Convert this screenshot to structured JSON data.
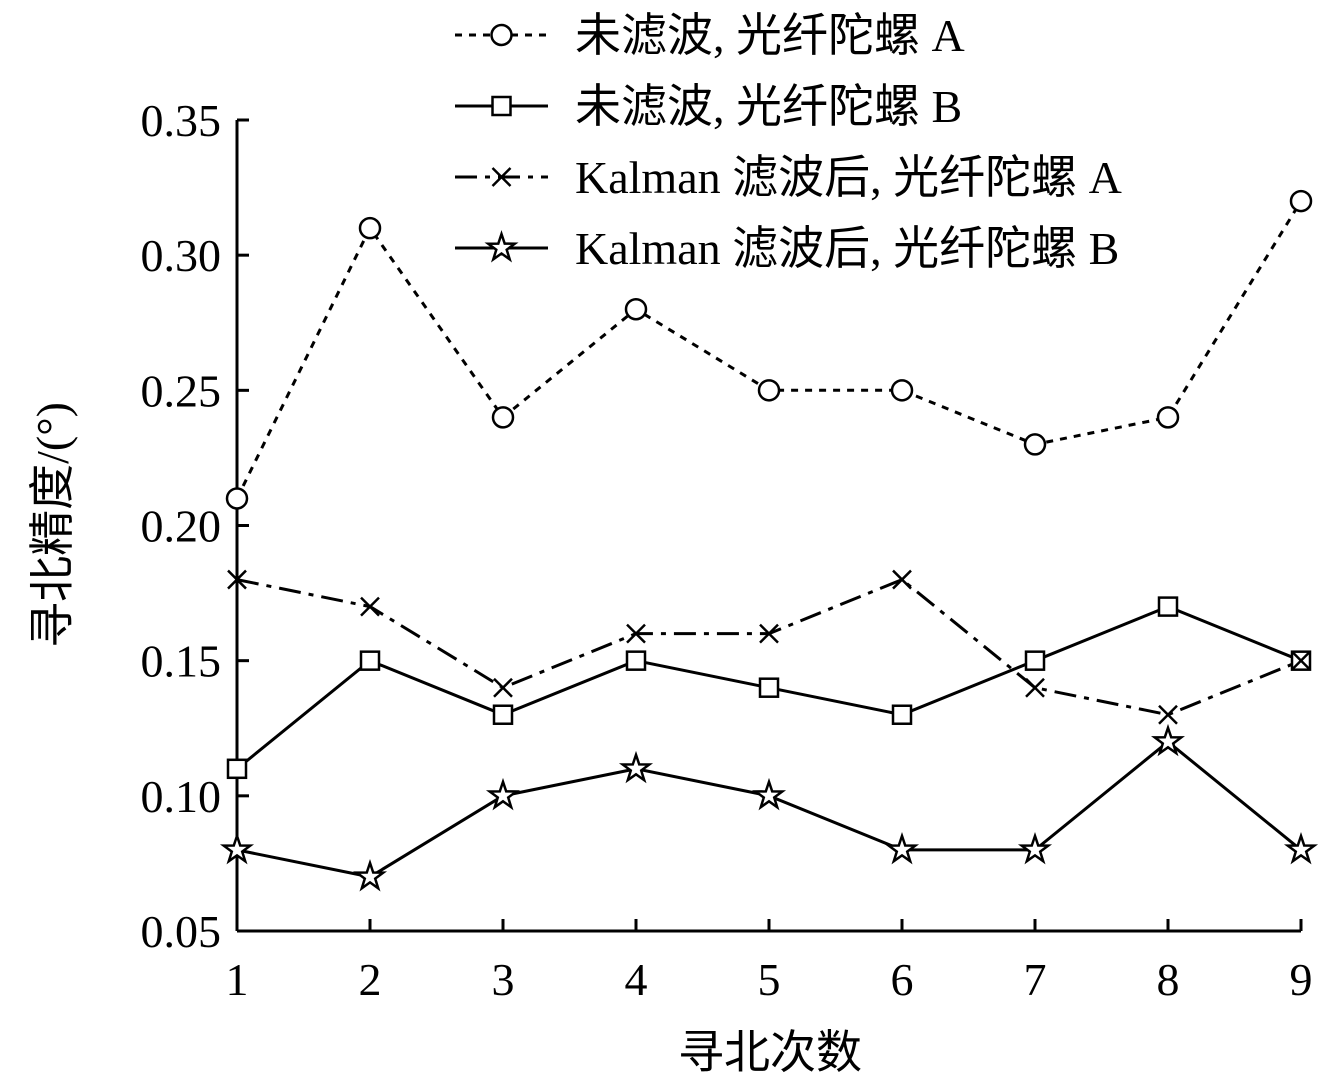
{
  "chart_data": {
    "type": "line",
    "title": "",
    "xlabel": "寻北次数",
    "ylabel": "寻北精度/(°)",
    "xlim": [
      1,
      9
    ],
    "ylim": [
      0.05,
      0.35
    ],
    "x": [
      1,
      2,
      3,
      4,
      5,
      6,
      7,
      8,
      9
    ],
    "xticks": [
      "1",
      "2",
      "3",
      "4",
      "5",
      "6",
      "7",
      "8",
      "9"
    ],
    "yticks": [
      "0.05",
      "0.10",
      "0.15",
      "0.20",
      "0.25",
      "0.30",
      "0.35"
    ],
    "grid": false,
    "legend_position": "top-right",
    "series": [
      {
        "name": "未滤波, 光纤陀螺 A",
        "marker": "circle",
        "line_style": "dotted",
        "values": [
          0.21,
          0.31,
          0.24,
          0.28,
          0.25,
          0.25,
          0.23,
          0.24,
          0.32
        ]
      },
      {
        "name": "未滤波, 光纤陀螺 B",
        "marker": "square",
        "line_style": "solid",
        "values": [
          0.11,
          0.15,
          0.13,
          0.15,
          0.14,
          0.13,
          0.15,
          0.17,
          0.15
        ]
      },
      {
        "name": "Kalman 滤波后, 光纤陀螺 A",
        "marker": "x",
        "line_style": "dash-dot",
        "values": [
          0.18,
          0.17,
          0.14,
          0.16,
          0.16,
          0.18,
          0.14,
          0.13,
          0.15
        ]
      },
      {
        "name": "Kalman 滤波后, 光纤陀螺 B",
        "marker": "star",
        "line_style": "solid",
        "values": [
          0.08,
          0.07,
          0.1,
          0.11,
          0.1,
          0.08,
          0.08,
          0.12,
          0.08
        ]
      }
    ]
  }
}
